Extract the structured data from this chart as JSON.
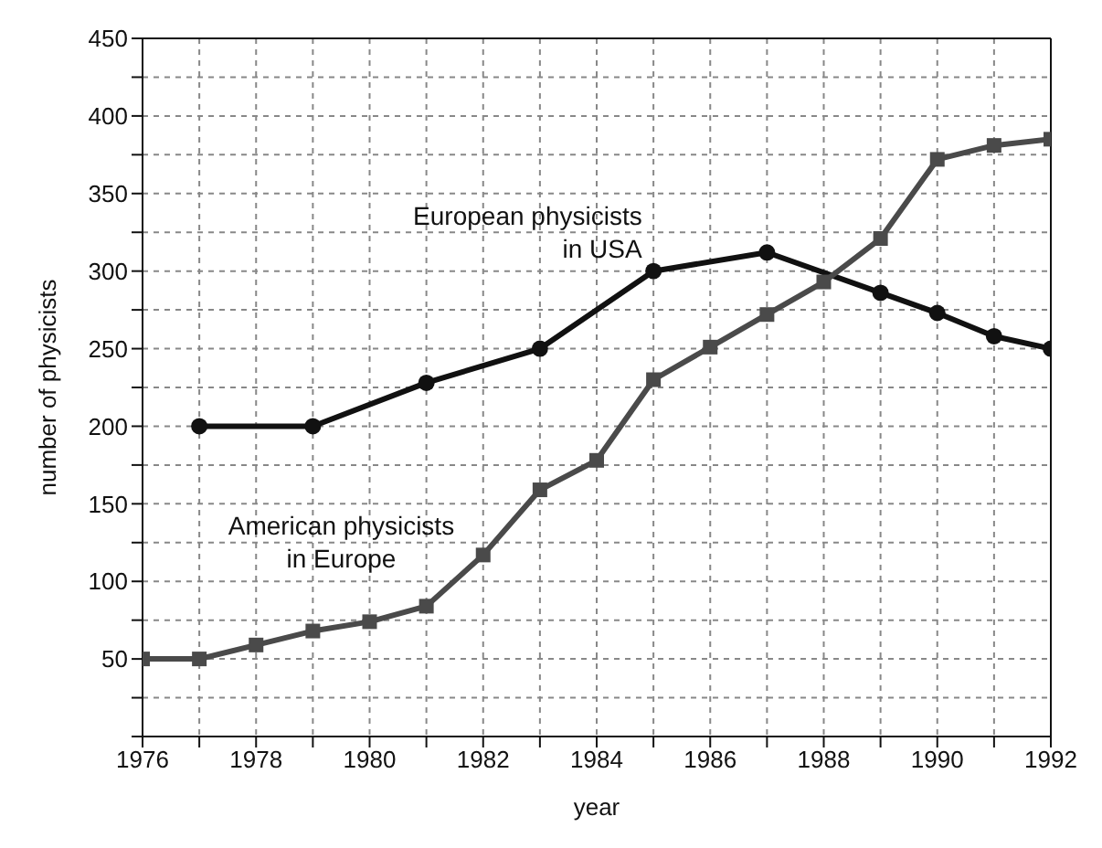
{
  "chart_data": {
    "type": "line",
    "xlabel": "year",
    "ylabel": "number of physicists",
    "xlim": [
      1976,
      1992
    ],
    "xticks": [
      1976,
      {
        "value": 1977,
        "label": null
      },
      1978,
      {
        "value": 1979,
        "label": null
      },
      1980,
      {
        "value": 1981,
        "label": null
      },
      1982,
      {
        "value": 1983,
        "label": null
      },
      1984,
      {
        "value": 1985,
        "label": null
      },
      1986,
      {
        "value": 1987,
        "label": null
      },
      1988,
      {
        "value": 1989,
        "label": null
      },
      1990,
      {
        "value": 1991,
        "label": null
      },
      1992
    ],
    "ylim": [
      0,
      450
    ],
    "yticks": [
      {
        "value": 0,
        "label": null
      },
      {
        "value": 25,
        "label": null
      },
      50,
      {
        "value": 75,
        "label": null
      },
      100,
      {
        "value": 125,
        "label": null
      },
      150,
      {
        "value": 175,
        "label": null
      },
      200,
      {
        "value": 225,
        "label": null
      },
      250,
      {
        "value": 275,
        "label": null
      },
      300,
      {
        "value": 325,
        "label": null
      },
      350,
      {
        "value": 375,
        "label": null
      },
      400,
      {
        "value": 425,
        "label": null
      },
      450
    ],
    "grid": true,
    "line_style": "solid",
    "legend": false,
    "series": [
      {
        "name": "European physicists in USA",
        "color": "#111111",
        "marker": "circle",
        "x": [
          1977,
          1979,
          1981,
          1983,
          1985,
          1987,
          1989,
          1990,
          1991,
          1992
        ],
        "values": [
          200,
          200,
          228,
          250,
          300,
          312,
          286,
          273,
          258,
          250
        ]
      },
      {
        "name": "American physicists in Europe",
        "color": "#4a4a4a",
        "marker": "square",
        "x": [
          1976,
          1977,
          1978,
          1979,
          1980,
          1981,
          1982,
          1983,
          1984,
          1985,
          1986,
          1987,
          1988,
          1989,
          1990,
          1991,
          1992
        ],
        "values": [
          50,
          50,
          59,
          68,
          74,
          84,
          117,
          159,
          178,
          230,
          251,
          272,
          293,
          321,
          372,
          381,
          385
        ]
      }
    ]
  }
}
